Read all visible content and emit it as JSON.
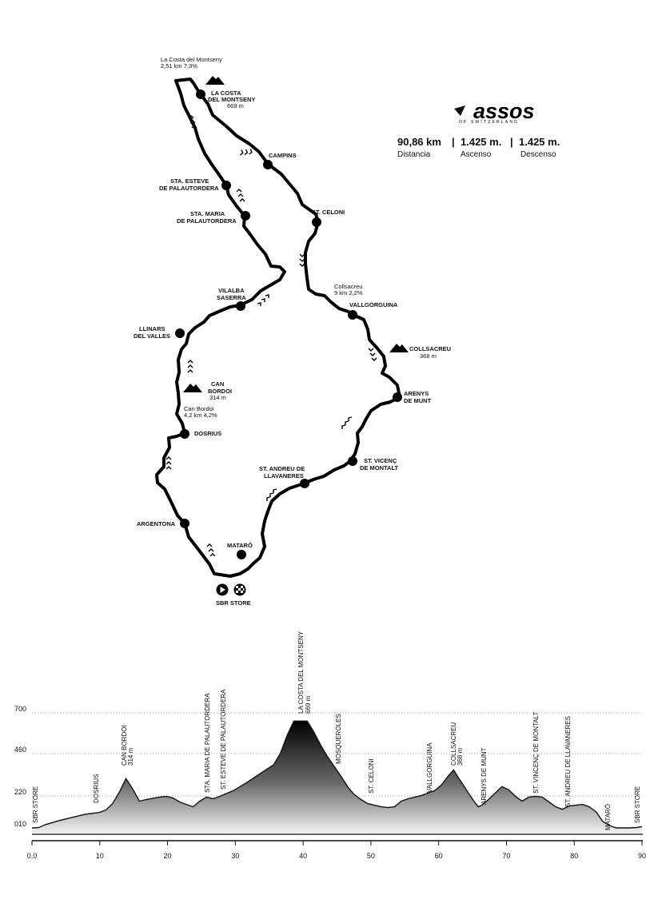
{
  "brand": {
    "name": "assos",
    "tagline": "OF SWITZERLAND"
  },
  "stats": {
    "distance": "90,86 km",
    "ascent": "1.425 m.",
    "descent": "1.425 m.",
    "separator": "|",
    "distance_label": "Distancia",
    "ascent_label": "Ascenso",
    "descent_label": "Descenso"
  },
  "map": {
    "start_label": "SBR STORE",
    "places": {
      "campins": "CAMPINS",
      "sta_esteve_1": "STA. ESTEVE",
      "sta_esteve_2": "DE PALAUTORDERA",
      "sta_maria_1": "STA. MARIA",
      "sta_maria_2": "DE PALAUTORDERA",
      "st_celoni": "ST. CELONI",
      "vilalba_1": "VILALBA",
      "vilalba_2": "SASERRA",
      "llinars_1": "LLINARS",
      "llinars_2": "DEL VALLES",
      "vallgorguina": "VALLGORGUINA",
      "arenys_1": "ARENYS",
      "arenys_2": "DE MUNT",
      "dosrius": "DOSRIUS",
      "st_vicenc_1": "ST. VICENÇ",
      "st_vicenc_2": "DE MONTALT",
      "st_andreu_1": "ST. ANDREU DE",
      "st_andreu_2": "LLAVANERES",
      "argentona": "ARGENTONA",
      "mataro": "MATARÓ"
    },
    "peaks": {
      "costa_1": "LA COSTA",
      "costa_2": "DEL MONTSENY",
      "costa_alt": "669 m",
      "collsacreu": "COLLSACREU",
      "collsacreu_alt": "368 m",
      "can_bordoi_1": "CAN",
      "can_bordoi_2": "BORDOI",
      "can_bordoi_alt": "314 m"
    },
    "climbs": {
      "costa_name": "La Costa del Montseny",
      "costa_stats": "2,51 km 7,3%",
      "collsacreu_name": "Collsacreu",
      "collsacreu_stats": "9 km 2,2%",
      "can_bordoi_name": "Can Bordoi",
      "can_bordoi_stats": "4,2 km 4,2%"
    }
  },
  "profile": {
    "y_ticks": [
      "700",
      "460",
      "220",
      "010"
    ],
    "x_ticks": [
      "0,0",
      "10",
      "20",
      "30",
      "40",
      "50",
      "60",
      "70",
      "80",
      "90"
    ],
    "x_values": [
      0,
      10,
      20,
      30,
      40,
      50,
      60,
      70,
      80,
      90
    ],
    "xlim": [
      0,
      90.86
    ],
    "ylim": [
      10,
      700
    ],
    "elevation": [
      [
        0,
        10
      ],
      [
        1,
        12
      ],
      [
        2,
        30
      ],
      [
        4,
        55
      ],
      [
        6,
        75
      ],
      [
        8,
        95
      ],
      [
        10,
        105
      ],
      [
        11,
        120
      ],
      [
        12,
        160
      ],
      [
        13,
        230
      ],
      [
        14,
        314
      ],
      [
        15,
        250
      ],
      [
        16,
        175
      ],
      [
        17,
        185
      ],
      [
        19,
        200
      ],
      [
        20,
        205
      ],
      [
        21,
        195
      ],
      [
        22,
        170
      ],
      [
        23,
        155
      ],
      [
        24,
        140
      ],
      [
        25,
        175
      ],
      [
        26,
        200
      ],
      [
        27,
        190
      ],
      [
        28,
        205
      ],
      [
        30,
        240
      ],
      [
        32,
        290
      ],
      [
        34,
        345
      ],
      [
        36,
        400
      ],
      [
        37,
        470
      ],
      [
        38,
        580
      ],
      [
        39,
        669
      ],
      [
        40.5,
        669
      ],
      [
        41,
        669
      ],
      [
        42,
        600
      ],
      [
        43,
        520
      ],
      [
        44,
        450
      ],
      [
        45,
        390
      ],
      [
        46,
        330
      ],
      [
        47,
        265
      ],
      [
        48,
        215
      ],
      [
        49,
        185
      ],
      [
        50,
        160
      ],
      [
        51,
        150
      ],
      [
        52,
        140
      ],
      [
        53,
        135
      ],
      [
        54,
        140
      ],
      [
        55,
        175
      ],
      [
        56,
        190
      ],
      [
        57,
        200
      ],
      [
        58,
        210
      ],
      [
        59,
        225
      ],
      [
        60,
        240
      ],
      [
        61,
        275
      ],
      [
        62,
        330
      ],
      [
        62.8,
        368
      ],
      [
        63.5,
        320
      ],
      [
        64,
        290
      ],
      [
        65,
        225
      ],
      [
        66,
        165
      ],
      [
        66.5,
        140
      ],
      [
        67,
        150
      ],
      [
        68,
        185
      ],
      [
        69,
        225
      ],
      [
        70,
        265
      ],
      [
        71,
        245
      ],
      [
        72,
        205
      ],
      [
        73,
        175
      ],
      [
        74,
        200
      ],
      [
        75,
        205
      ],
      [
        76,
        200
      ],
      [
        77,
        170
      ],
      [
        78,
        140
      ],
      [
        79,
        125
      ],
      [
        80,
        145
      ],
      [
        81,
        150
      ],
      [
        82,
        155
      ],
      [
        83,
        140
      ],
      [
        84,
        110
      ],
      [
        85,
        50
      ],
      [
        86,
        25
      ],
      [
        87,
        10
      ],
      [
        89,
        10
      ],
      [
        90,
        12
      ],
      [
        90.86,
        18
      ]
    ],
    "labels": {
      "sbr_start": "SBR STORE",
      "dosrius": "DOSRIUS",
      "can_bordoi": "CAN BORDOI",
      "can_bordoi_alt": "314 m",
      "sta_maria": "STA. MARIA DE PALAUTORDERA",
      "st_esteve": "ST. ESTEVE DE PALAUTORDERA",
      "costa": "LA COSTA DEL MONTSENY",
      "costa_alt": "669 m",
      "mosqueroles": "MOSQUEROLES",
      "st_celoni": "ST. CELONI",
      "vallgorguina": "VALLGORGUINA",
      "collsacreu": "COLLSACREU",
      "collsacreu_alt": "368 m",
      "arenys": "ARENYS DE MUNT",
      "st_vicenc": "ST. VINCENÇ DE MONTALT",
      "st_andreu": "ST. ANDREU DE LLAVANERES",
      "mataro": "MATARÓ",
      "sbr_end": "SBR STORE"
    }
  }
}
